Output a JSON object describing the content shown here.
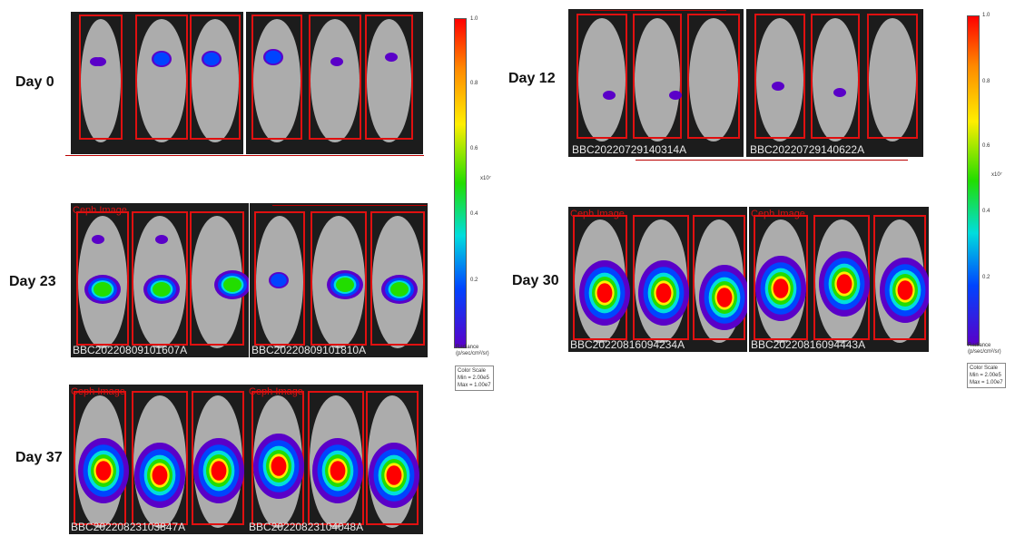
{
  "days": {
    "d0": "Day 0",
    "d12": "Day 12",
    "d23": "Day 23",
    "d30": "Day 30",
    "d37": "Day 37"
  },
  "ids": {
    "d12_left": "BBC20220729140314A",
    "d12_right": "BBC20220729140622A",
    "d23_left": "BBC20220809101607A",
    "d23_right": "BBC20220809101810A",
    "d30_left": "BBC20220816094234A",
    "d30_right": "BBC20220816094443A",
    "d37_left": "BBC20220823103847A",
    "d37_right": "BBC20220823104048A"
  },
  "roi_labels": {
    "d23": "Ceph Image",
    "d30_left": "Ceph Image",
    "d30_right": "Ceph Image",
    "d37_left": "Ceph Image",
    "d37_right": "Ceph Image"
  },
  "colorbar": {
    "ticks": [
      "1.0",
      "0.8",
      "0.6",
      "0.4",
      "0.2"
    ],
    "multiplier": "x10⁷",
    "radiance_title": "Radiance",
    "radiance_units": "(p/sec/cm²/sr)",
    "color_scale_title": "Color Scale",
    "min": "Min = 2.00e5",
    "max": "Max = 1.00e7"
  }
}
